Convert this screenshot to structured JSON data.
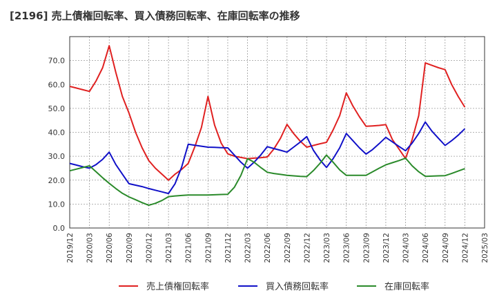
{
  "chart_data": {
    "type": "line",
    "title": "[2196]  売上債権回転率、買入債務回転率、在庫回転率の推移",
    "xlabel": "",
    "ylabel": "",
    "ylim": [
      0,
      80
    ],
    "yticks": [
      "0.0",
      "10.0",
      "20.0",
      "30.0",
      "40.0",
      "50.0",
      "60.0",
      "70.0"
    ],
    "xticks": [
      "2019/12",
      "2020/03",
      "2020/06",
      "2020/09",
      "2020/12",
      "2021/03",
      "2021/06",
      "2021/09",
      "2021/12",
      "2022/03",
      "2022/06",
      "2022/09",
      "2022/12",
      "2023/03",
      "2023/06",
      "2023/09",
      "2023/12",
      "2024/03",
      "2024/06",
      "2024/09",
      "2024/12",
      "2025/03"
    ],
    "grid": true,
    "legend_position": "bottom",
    "x_months": [
      "2019/12",
      "2020/01",
      "2020/02",
      "2020/03",
      "2020/04",
      "2020/05",
      "2020/06",
      "2020/07",
      "2020/08",
      "2020/09",
      "2020/10",
      "2020/11",
      "2020/12",
      "2021/01",
      "2021/02",
      "2021/03",
      "2021/04",
      "2021/05",
      "2021/06",
      "2021/07",
      "2021/08",
      "2021/09",
      "2021/10",
      "2021/11",
      "2021/12",
      "2022/01",
      "2022/02",
      "2022/03",
      "2022/04",
      "2022/05",
      "2022/06",
      "2022/07",
      "2022/08",
      "2022/09",
      "2022/10",
      "2022/11",
      "2022/12",
      "2023/01",
      "2023/02",
      "2023/03",
      "2023/04",
      "2023/05",
      "2023/06",
      "2023/07",
      "2023/08",
      "2023/09",
      "2023/10",
      "2023/11",
      "2023/12",
      "2024/01",
      "2024/02",
      "2024/03",
      "2024/04",
      "2024/05",
      "2024/06",
      "2024/07",
      "2024/08",
      "2024/09",
      "2024/10",
      "2024/11",
      "2024/12"
    ],
    "series": [
      {
        "name": "売上債権回転率",
        "color": "#e02020",
        "values": [
          59.2,
          58.5,
          57.8,
          57.1,
          61.5,
          67.0,
          76.2,
          65.0,
          55.0,
          48.0,
          40.0,
          33.5,
          28.2,
          25.0,
          22.5,
          20.0,
          22.5,
          24.5,
          27.0,
          34.0,
          42.0,
          55.0,
          43.0,
          35.5,
          31.0,
          30.0,
          29.5,
          29.0,
          29.2,
          29.4,
          29.7,
          33.0,
          37.5,
          43.3,
          39.5,
          36.3,
          33.8,
          34.5,
          35.2,
          35.8,
          41.0,
          47.0,
          56.5,
          51.0,
          46.5,
          42.5,
          42.7,
          42.9,
          43.2,
          37.0,
          33.0,
          29.0,
          37.0,
          47.0,
          69.0,
          68.0,
          67.0,
          66.2,
          60.0,
          55.0,
          50.5
        ]
      },
      {
        "name": "買入債務回転率",
        "color": "#1010c8",
        "values": [
          27.0,
          26.3,
          25.6,
          25.0,
          26.5,
          28.7,
          31.7,
          26.5,
          22.5,
          18.5,
          17.9,
          17.3,
          16.5,
          15.8,
          15.1,
          14.4,
          18.5,
          25.5,
          35.0,
          34.6,
          34.2,
          33.8,
          33.7,
          33.6,
          33.5,
          30.5,
          27.5,
          25.0,
          27.5,
          30.5,
          34.0,
          33.2,
          32.5,
          31.7,
          33.8,
          35.9,
          38.2,
          32.5,
          28.5,
          25.3,
          29.0,
          33.5,
          39.5,
          36.5,
          33.5,
          30.9,
          32.8,
          35.3,
          37.9,
          36.0,
          34.1,
          32.3,
          35.5,
          39.5,
          44.3,
          40.5,
          37.5,
          34.5,
          36.5,
          38.8,
          41.5
        ]
      },
      {
        "name": "在庫回転率",
        "color": "#2a8a2a",
        "values": [
          23.9,
          24.6,
          25.3,
          26.0,
          23.5,
          21.0,
          18.7,
          16.5,
          14.5,
          13.0,
          11.8,
          10.6,
          9.5,
          10.3,
          11.5,
          13.1,
          13.4,
          13.6,
          13.8,
          13.8,
          13.8,
          13.8,
          13.9,
          14.0,
          14.1,
          17.0,
          22.0,
          29.0,
          27.5,
          25.3,
          23.3,
          22.8,
          22.4,
          22.0,
          21.8,
          21.6,
          21.5,
          24.0,
          27.0,
          30.5,
          27.5,
          24.3,
          22.0,
          22.0,
          22.0,
          22.0,
          23.5,
          25.0,
          26.4,
          27.3,
          28.2,
          29.2,
          26.0,
          23.5,
          21.6,
          21.7,
          21.8,
          21.9,
          22.8,
          23.8,
          24.8
        ]
      }
    ]
  }
}
